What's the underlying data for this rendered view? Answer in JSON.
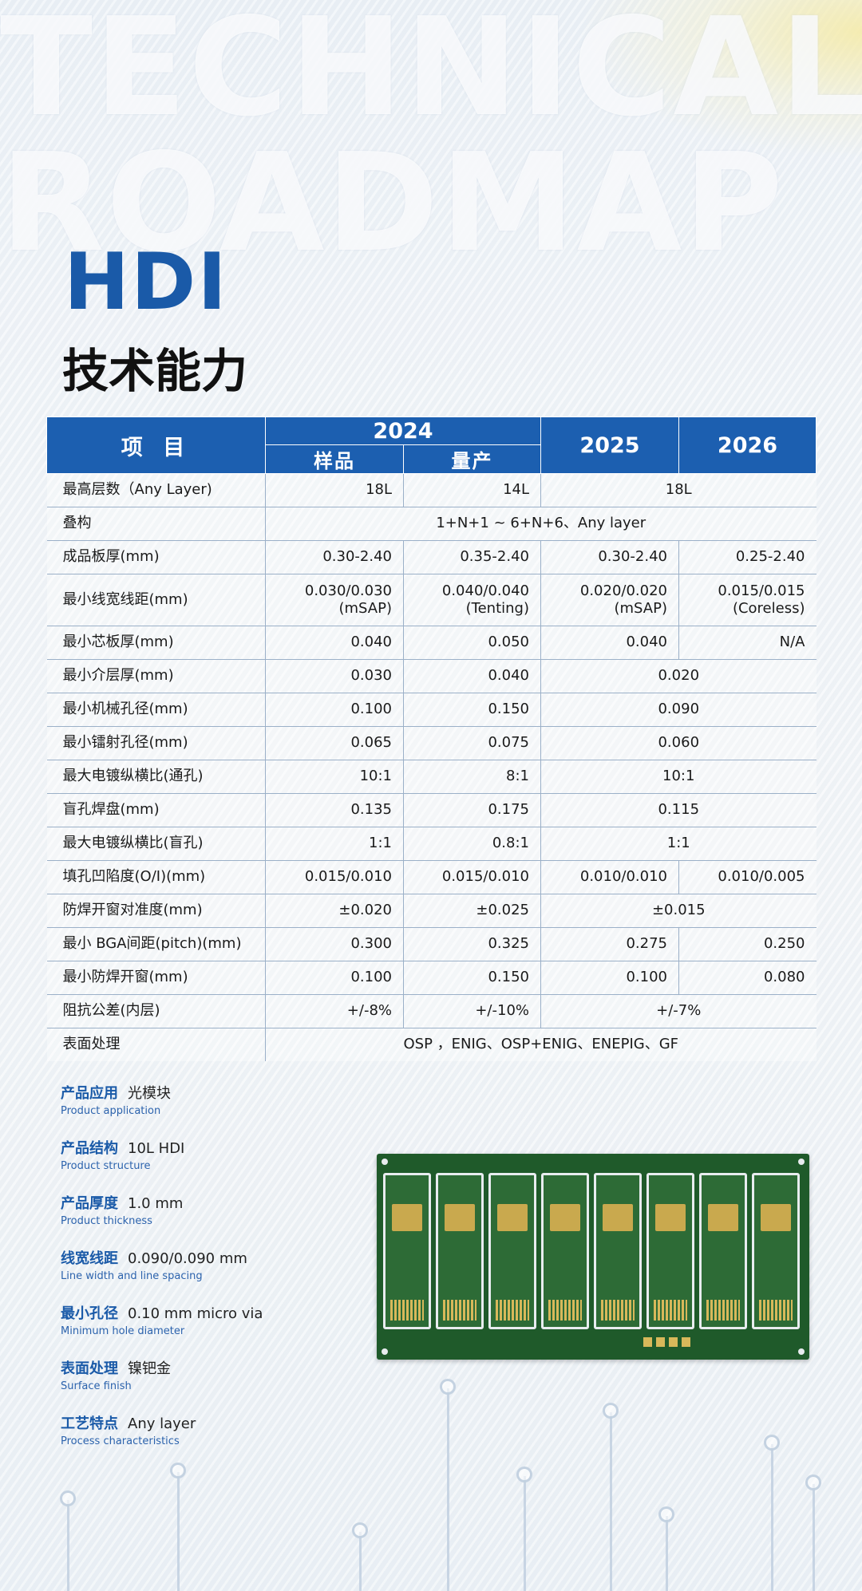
{
  "background": {
    "line1": "TECHNICAL",
    "line2": "ROADMAP"
  },
  "title": "HDI",
  "subtitle": "技术能力",
  "table": {
    "header": {
      "item": "项 目",
      "y2024": "2024",
      "sample": "样品",
      "mass": "量产",
      "y2025": "2025",
      "y2026": "2026"
    },
    "rows": [
      {
        "label": "最高层数（Any Layer)",
        "c1": "18L",
        "c2": "14L",
        "c34": "18L"
      },
      {
        "label": "叠构",
        "all": "1+N+1 ~ 6+N+6、Any layer"
      },
      {
        "label": "成品板厚(mm)",
        "c1": "0.30-2.40",
        "c2": "0.35-2.40",
        "c3": "0.30-2.40",
        "c4": "0.25-2.40"
      },
      {
        "label": "最小线宽线距(mm)",
        "c1": "0.030/0.030",
        "c1b": "(mSAP)",
        "c2": "0.040/0.040",
        "c2b": "(Tenting)",
        "c3": "0.020/0.020",
        "c3b": "(mSAP)",
        "c4": "0.015/0.015",
        "c4b": "(Coreless)"
      },
      {
        "label": "最小芯板厚(mm)",
        "c1": "0.040",
        "c2": "0.050",
        "c3": "0.040",
        "c4": "N/A"
      },
      {
        "label": "最小介层厚(mm)",
        "c1": "0.030",
        "c2": "0.040",
        "c34": "0.020"
      },
      {
        "label": "最小机械孔径(mm)",
        "c1": "0.100",
        "c2": "0.150",
        "c34": "0.090"
      },
      {
        "label": "最小镭射孔径(mm)",
        "c1": "0.065",
        "c2": "0.075",
        "c34": "0.060"
      },
      {
        "label": "最大电镀纵横比(通孔)",
        "c1": "10:1",
        "c2": "8:1",
        "c34": "10:1"
      },
      {
        "label": "盲孔焊盘(mm)",
        "c1": "0.135",
        "c2": "0.175",
        "c34": "0.115"
      },
      {
        "label": "最大电镀纵横比(盲孔)",
        "c1": "1:1",
        "c2": "0.8:1",
        "c34": "1:1"
      },
      {
        "label": "填孔凹陷度(O/I)(mm)",
        "c1": "0.015/0.010",
        "c2": "0.015/0.010",
        "c3": "0.010/0.010",
        "c4": "0.010/0.005"
      },
      {
        "label": "防焊开窗对准度(mm)",
        "c1": "±0.020",
        "c2": "±0.025",
        "c34": "±0.015"
      },
      {
        "label": "最小 BGA间距(pitch)(mm)",
        "c1": "0.300",
        "c2": "0.325",
        "c3": "0.275",
        "c4": "0.250"
      },
      {
        "label": "最小防焊开窗(mm)",
        "c1": "0.100",
        "c2": "0.150",
        "c3": "0.100",
        "c4": "0.080"
      },
      {
        "label": "阻抗公差(内层)",
        "c1": "+/-8%",
        "c2": "+/-10%",
        "c34": "+/-7%"
      },
      {
        "label": "表面处理",
        "all": "OSP ，ENIG、OSP+ENIG、ENEPIG、GF"
      }
    ]
  },
  "product": [
    {
      "cn": "产品应用",
      "val": "光模块",
      "en": "Product application"
    },
    {
      "cn": "产品结构",
      "val": "10L HDI",
      "en": "Product structure"
    },
    {
      "cn": "产品厚度",
      "val": "1.0 mm",
      "en": "Product thickness"
    },
    {
      "cn": "线宽线距",
      "val": "0.090/0.090 mm",
      "en": "Line width and line spacing"
    },
    {
      "cn": "最小孔径",
      "val": "0.10 mm micro via",
      "en": "Minimum hole diameter"
    },
    {
      "cn": "表面处理",
      "val": "镍钯金",
      "en": "Surface finish"
    },
    {
      "cn": "工艺特点",
      "val": "Any layer",
      "en": "Process characteristics"
    }
  ],
  "colors": {
    "brand_blue": "#1c5fb0",
    "pcb_green": "#1f5a2a"
  }
}
